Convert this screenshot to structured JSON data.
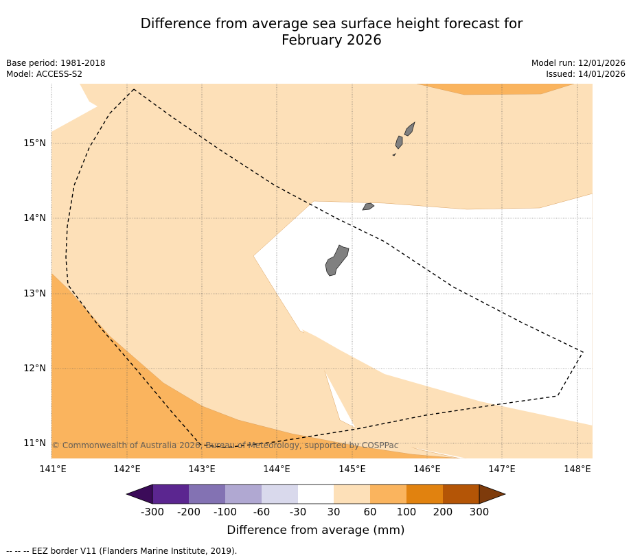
{
  "title_line1": "Difference from average sea surface height forecast for",
  "title_line2": "February 2026",
  "base_period": "Base period: 1981-2018",
  "model": "Model: ACCESS-S2",
  "model_run": "Model run: 12/01/2026",
  "issued": "Issued: 14/01/2026",
  "copyright": "© Commonwealth of Australia 2026, Bureau of Meteorology, supported by COSPPac",
  "footer_note": "-- -- -- EEZ border V11 (Flanders Marine Institute, 2019).",
  "lon_labels": [
    "141°E",
    "142°E",
    "143°E",
    "144°E",
    "145°E",
    "146°E",
    "147°E",
    "148°E"
  ],
  "lat_labels": [
    "15°N",
    "14°N",
    "13°N",
    "12°N",
    "11°N"
  ],
  "colorbar": {
    "title": "Difference from average (mm)",
    "tick_labels": [
      "-300",
      "-200",
      "-100",
      "-60",
      "-30",
      "30",
      "60",
      "100",
      "200",
      "300"
    ],
    "colors": [
      "#3b0b59",
      "#5b2690",
      "#8372b3",
      "#b0a8d2",
      "#d9d9ec",
      "#ffffff",
      "#fde0b8",
      "#fab45e",
      "#e1820f",
      "#b45506",
      "#7e3b0b"
    ]
  },
  "map_colors": {
    "ocean_light": "#fde0b8",
    "ocean_mid": "#fab45e",
    "neutral": "#ffffff",
    "land": "#808080"
  }
}
